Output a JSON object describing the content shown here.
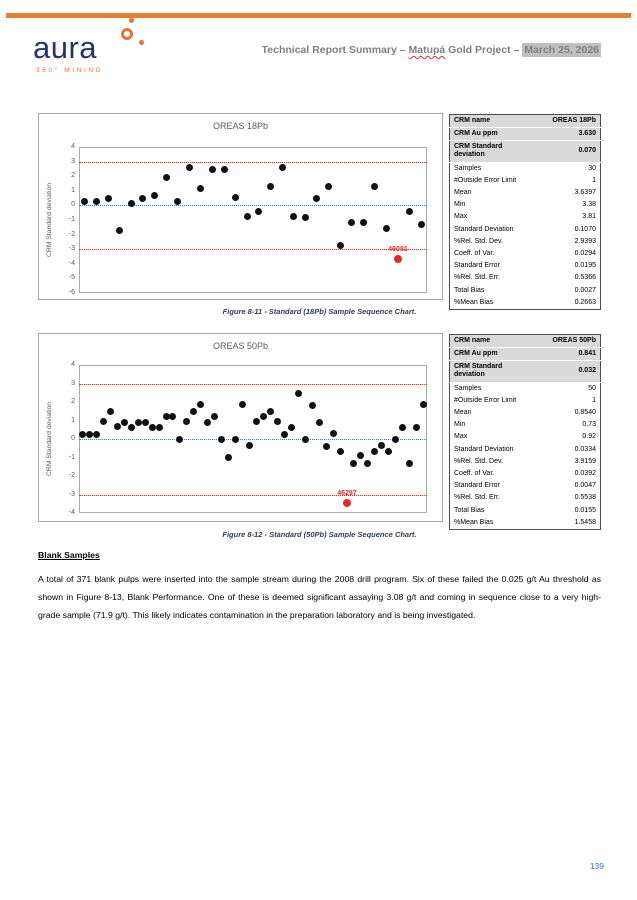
{
  "header": {
    "logo_text": "aura",
    "logo_subtext": "360° MINING",
    "title_prefix": "Technical Report Summary – ",
    "title_project": "Matupá",
    "title_middle": " Gold Project – ",
    "title_date": "March 25, 2026"
  },
  "colors": {
    "accent_orange": "#E87E34",
    "logo_navy": "#23356B",
    "control_line_red": "#E02B2B",
    "control_line_blue": "#4472C4",
    "header_text_gray": "#7F7F7F",
    "table_header_bg": "#D9D9D9",
    "page_number_blue": "#4472C4"
  },
  "chart_data": [
    {
      "type": "scatter",
      "title": "OREAS 18Pb",
      "xlabel": "",
      "ylabel": "CRM Standard deviation",
      "ylim": [
        -6,
        4
      ],
      "yticks": [
        4,
        3,
        2,
        1,
        0,
        -1,
        -2,
        -3,
        -4,
        -5,
        -6
      ],
      "grid": false,
      "control_lines": [
        {
          "y": 3,
          "color": "#E02B2B"
        },
        {
          "y": 0,
          "color": "#4472C4"
        },
        {
          "y": -3,
          "color": "#E02B2B"
        }
      ],
      "values": [
        0.3,
        0.3,
        0.45,
        -1.7,
        0.15,
        0.45,
        0.7,
        1.9,
        0.3,
        2.6,
        1.15,
        2.45,
        2.45,
        0.55,
        -0.75,
        -0.45,
        1.3,
        2.6,
        -0.75,
        -0.85,
        0.45,
        1.3,
        -2.75,
        -1.15,
        -1.15,
        1.3,
        -1.6,
        -3.65,
        -0.45,
        -1.3
      ],
      "outlier_index": 27,
      "outlier_label": "46081"
    },
    {
      "type": "scatter",
      "title": "OREAS 50Pb",
      "xlabel": "",
      "ylabel": "CRM Standard deviation",
      "ylim": [
        -4,
        4
      ],
      "yticks": [
        4,
        3,
        2,
        1,
        0,
        -1,
        -2,
        -3,
        -4
      ],
      "grid": false,
      "control_lines": [
        {
          "y": 3,
          "color": "#E02B2B"
        },
        {
          "y": 0,
          "color": "#4472C4"
        },
        {
          "y": -3,
          "color": "#E02B2B"
        }
      ],
      "values": [
        0.25,
        0.25,
        0.25,
        0.95,
        1.5,
        0.65,
        0.9,
        0.6,
        0.9,
        0.9,
        0.6,
        0.6,
        1.2,
        1.2,
        -0.05,
        0.95,
        1.5,
        1.85,
        0.9,
        1.2,
        -0.05,
        -1.0,
        -0.05,
        1.85,
        -0.35,
        0.95,
        1.2,
        1.5,
        0.95,
        0.25,
        0.6,
        2.45,
        0.0,
        1.8,
        0.9,
        -0.4,
        0.3,
        -0.65,
        -3.45,
        -1.35,
        -0.9,
        -1.35,
        -0.65,
        -0.35,
        -0.65,
        -0.05,
        0.6,
        -1.3,
        0.6,
        1.85
      ],
      "outlier_index": 38,
      "outlier_label": "46297"
    }
  ],
  "tables": [
    {
      "rows": [
        {
          "label": "CRM name",
          "value": "OREAS 18Pb",
          "header": true
        },
        {
          "label": "CRM Au ppm",
          "value": "3.630",
          "header": true
        },
        {
          "label": "CRM Standard deviation",
          "value": "0.070",
          "header": true
        },
        {
          "label": "Samples",
          "value": "30"
        },
        {
          "label": "#Outside Error Limit",
          "value": "1"
        },
        {
          "label": "Mean",
          "value": "3.6397"
        },
        {
          "label": "Min",
          "value": "3.38"
        },
        {
          "label": "Max",
          "value": "3.81"
        },
        {
          "label": "Standard Deviation",
          "value": "0.1070"
        },
        {
          "label": "%Rel. Std. Dev.",
          "value": "2.9393"
        },
        {
          "label": "Coeff. of Var.",
          "value": "0.0294"
        },
        {
          "label": "Standard Error",
          "value": "0.0195"
        },
        {
          "label": "%Rel. Std. Err.",
          "value": "0.5366"
        },
        {
          "label": "Total Bias",
          "value": "0.0027"
        },
        {
          "label": "%Mean Bias",
          "value": "0.2663"
        }
      ]
    },
    {
      "rows": [
        {
          "label": "CRM name",
          "value": "OREAS 50Pb",
          "header": true
        },
        {
          "label": "CRM Au ppm",
          "value": "0.841",
          "header": true
        },
        {
          "label": "CRM Standard deviation",
          "value": "0.032",
          "header": true
        },
        {
          "label": "Samples",
          "value": "50"
        },
        {
          "label": "#Outside Error Limit",
          "value": "1"
        },
        {
          "label": "Mean",
          "value": "0.8540"
        },
        {
          "label": "Min",
          "value": "0.73"
        },
        {
          "label": "Max",
          "value": "0.92"
        },
        {
          "label": "Standard Deviation",
          "value": "0.0334"
        },
        {
          "label": "%Rel. Std. Dev.",
          "value": "3.9159"
        },
        {
          "label": "Coeff. of Var.",
          "value": "0.0392"
        },
        {
          "label": "Standard Error",
          "value": "0.0047"
        },
        {
          "label": "%Rel. Std. Err.",
          "value": "0.5538"
        },
        {
          "label": "Total Bias",
          "value": "0.0155"
        },
        {
          "label": "%Mean Bias",
          "value": "1.5458"
        }
      ]
    }
  ],
  "captions": [
    "Figure 8-11 - Standard (18Pb) Sample Sequence Chart.",
    "Figure 8-12 - Standard (50Pb) Sample Sequence Chart."
  ],
  "body": {
    "heading": "Blank Samples",
    "paragraph": "A total of 371 blank pulps were inserted into the sample stream during the 2008 drill program. Six of these failed the 0.025 g/t Au threshold as shown in Figure 8-13, Blank Performance. One of these is deemed significant assaying 3.08 g/t and coming in sequence close to a very high-grade sample (71.9 g/t). This likely indicates contamination in the preparation laboratory and is being investigated."
  },
  "page_number": "139"
}
